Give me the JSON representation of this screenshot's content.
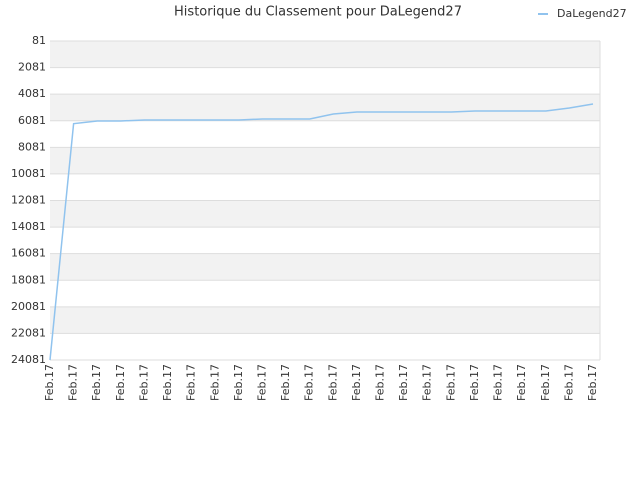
{
  "chart_data": {
    "type": "line",
    "title": "Historique du Classement pour DaLegend27",
    "categories": [
      "Feb.17",
      "Feb.17",
      "Feb.17",
      "Feb.17",
      "Feb.17",
      "Feb.17",
      "Feb.17",
      "Feb.17",
      "Feb.17",
      "Feb.17",
      "Feb.17",
      "Feb.17",
      "Feb.17",
      "Feb.17",
      "Feb.17",
      "Feb.17",
      "Feb.17",
      "Feb.17",
      "Feb.17",
      "Feb.17",
      "Feb.17",
      "Feb.17",
      "Feb.17",
      "Feb.17"
    ],
    "series": [
      {
        "name": "DaLegend27",
        "color": "#90c3ee",
        "values": [
          24081,
          6300,
          6100,
          6100,
          6020,
          6020,
          6020,
          6020,
          6020,
          5950,
          5950,
          5950,
          5570,
          5420,
          5420,
          5420,
          5420,
          5420,
          5350,
          5350,
          5350,
          5350,
          5120,
          4820
        ]
      }
    ],
    "ylim": [
      81,
      24081
    ],
    "y_inverted": true,
    "yticks": [
      81,
      2081,
      4081,
      6081,
      8081,
      10081,
      12081,
      14081,
      16081,
      18081,
      20081,
      22081,
      24081
    ],
    "grid": true,
    "legend": "top-right"
  }
}
